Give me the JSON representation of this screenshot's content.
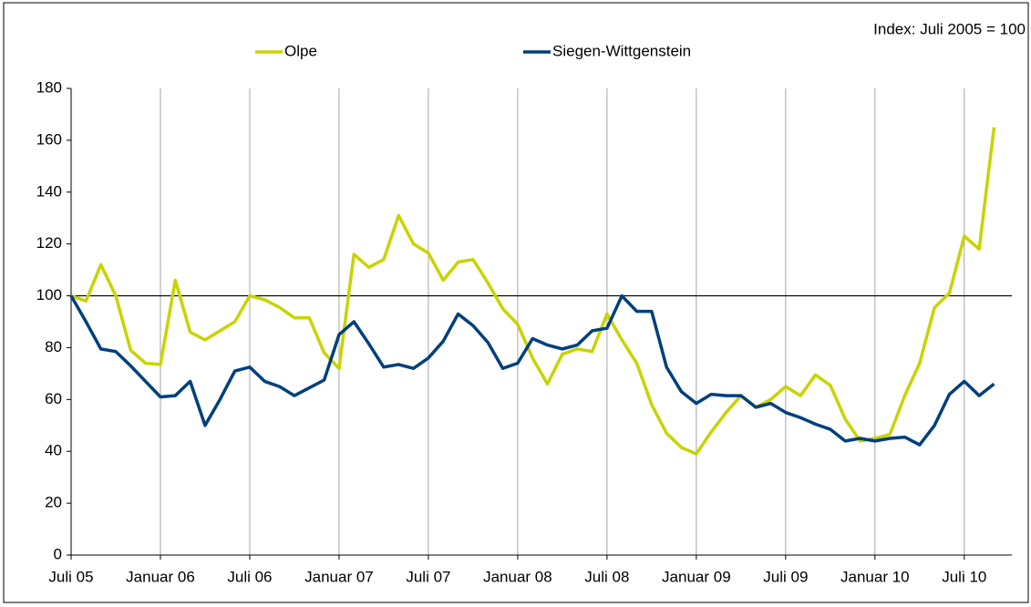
{
  "chart_data": {
    "type": "line",
    "annotation": "Index: Juli 2005 = 100",
    "categories": [
      "Juli 05",
      null,
      null,
      null,
      null,
      null,
      "Januar 06",
      null,
      null,
      null,
      null,
      null,
      "Juli 06",
      null,
      null,
      null,
      null,
      null,
      "Januar 07",
      null,
      null,
      null,
      null,
      null,
      "Juli 07",
      null,
      null,
      null,
      null,
      null,
      "Januar 08",
      null,
      null,
      null,
      null,
      null,
      "Juli 08",
      null,
      null,
      null,
      null,
      null,
      "Januar 09",
      null,
      null,
      null,
      null,
      null,
      "Juli 09",
      null,
      null,
      null,
      null,
      null,
      "Januar 10",
      null,
      null,
      null,
      null,
      null,
      "Juli 10",
      null,
      null
    ],
    "series": [
      {
        "name": "Olpe",
        "color": "#c8d400",
        "values": [
          100,
          98,
          112,
          100,
          79,
          74,
          73.5,
          106,
          86,
          83,
          86.5,
          90,
          100,
          98.5,
          95.5,
          91.5,
          91.5,
          78,
          72,
          116,
          111,
          114,
          131,
          120,
          116.5,
          106,
          113,
          114,
          105,
          95,
          89,
          76,
          66,
          77.5,
          79.5,
          78.5,
          93,
          83,
          74,
          58,
          47,
          41.5,
          39,
          47.5,
          55,
          61.5,
          57,
          60,
          65,
          61.5,
          69.5,
          65.5,
          52.5,
          44,
          45,
          46.5,
          61.5,
          74,
          95.5,
          101,
          123,
          118,
          165
        ]
      },
      {
        "name": "Siegen-Wittgenstein",
        "color": "#003f7d",
        "values": [
          100,
          90,
          79.5,
          78.5,
          73,
          67,
          61,
          61.5,
          67,
          50,
          60,
          71,
          72.5,
          67,
          65,
          61.5,
          64.5,
          67.5,
          85,
          90,
          81.5,
          72.5,
          73.5,
          72,
          76,
          82.5,
          93,
          88.5,
          82,
          72,
          74,
          83.5,
          81,
          79.5,
          81,
          86.5,
          87.5,
          100,
          94,
          94,
          72.5,
          63,
          58.5,
          62,
          61.5,
          61.5,
          57,
          58.5,
          55,
          53,
          50.5,
          48.5,
          44,
          45,
          44,
          45,
          45.5,
          42.5,
          50,
          62,
          67,
          61.5,
          66
        ]
      }
    ],
    "ylim": [
      0,
      180
    ],
    "yticks": [
      0,
      20,
      40,
      60,
      80,
      100,
      120,
      140,
      160,
      180
    ],
    "reference_line": 100,
    "grid": true
  }
}
